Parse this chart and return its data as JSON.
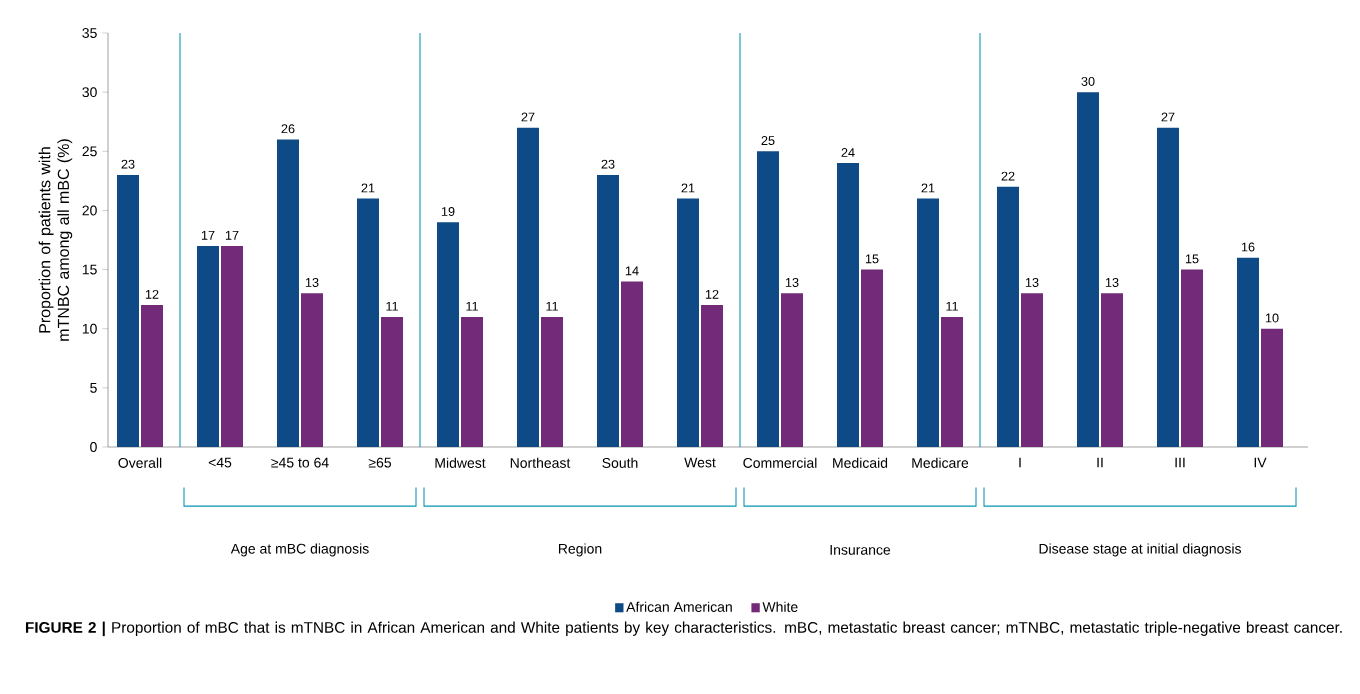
{
  "chart_data": {
    "type": "bar",
    "ylabel": "Proportion of patients with mTNBC among all mBC (%)",
    "categories": [
      "Overall",
      "<45",
      "≥45 to 64",
      "≥65",
      "Midwest",
      "Northeast",
      "South",
      "West",
      "Commercial",
      "Medicaid",
      "Medicare",
      "I",
      "II",
      "III",
      "IV"
    ],
    "series": [
      {
        "name": "African American",
        "color": "#0d4a86",
        "values": [
          23,
          17,
          26,
          21,
          19,
          27,
          23,
          21,
          25,
          24,
          21,
          22,
          30,
          27,
          16
        ]
      },
      {
        "name": "White",
        "color": "#722a79",
        "values": [
          12,
          17,
          13,
          11,
          11,
          11,
          14,
          12,
          13,
          15,
          11,
          13,
          13,
          15,
          10
        ]
      }
    ],
    "ylim": [
      0,
      35
    ],
    "yticks": [
      0,
      5,
      10,
      15,
      20,
      25,
      30,
      35
    ],
    "data_labels": true,
    "legend": "bottom",
    "grid": false,
    "annotations": [
      "Age at mBC diagnosis",
      "Region",
      "Insurance",
      "Disease stage at initial diagnosis",
      "**FIGURE 2 |** Proportion of mBC that is mTNBC in African American and White patients by key characteristics. mBC, metastatic breast cancer; mTNBC, metastatic triple-negative breast cancer."
    ]
  }
}
